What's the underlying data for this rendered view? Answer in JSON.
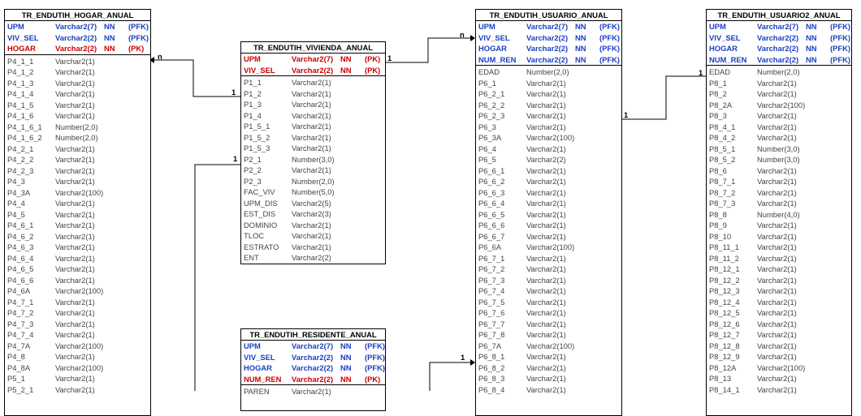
{
  "tables": {
    "hogar": {
      "title": "TR_ENDUTIH_HOGAR_ANUAL",
      "keys": [
        {
          "name": "UPM",
          "type": "Varchar2(7)",
          "nn": "NN",
          "tag": "(PFK)",
          "kind": "fk"
        },
        {
          "name": "VIV_SEL",
          "type": "Varchar2(2)",
          "nn": "NN",
          "tag": "(PFK)",
          "kind": "fk"
        },
        {
          "name": "HOGAR",
          "type": "Varchar2(2)",
          "nn": "NN",
          "tag": "(PK)",
          "kind": "pk"
        }
      ],
      "fields": [
        [
          "P4_1_1",
          "Varchar2(1)"
        ],
        [
          "P4_1_2",
          "Varchar2(1)"
        ],
        [
          "P4_1_3",
          "Varchar2(1)"
        ],
        [
          "P4_1_4",
          "Varchar2(1)"
        ],
        [
          "P4_1_5",
          "Varchar2(1)"
        ],
        [
          "P4_1_6",
          "Varchar2(1)"
        ],
        [
          "P4_1_6_1",
          "Number(2,0)"
        ],
        [
          "P4_1_6_2",
          "Number(2,0)"
        ],
        [
          "P4_2_1",
          "Varchar2(1)"
        ],
        [
          "P4_2_2",
          "Varchar2(1)"
        ],
        [
          "P4_2_3",
          "Varchar2(1)"
        ],
        [
          "P4_3",
          "Varchar2(1)"
        ],
        [
          "P4_3A",
          "Varchar2(100)"
        ],
        [
          "P4_4",
          "Varchar2(1)"
        ],
        [
          "P4_5",
          "Varchar2(1)"
        ],
        [
          "P4_6_1",
          "Varchar2(1)"
        ],
        [
          "P4_6_2",
          "Varchar2(1)"
        ],
        [
          "P4_6_3",
          "Varchar2(1)"
        ],
        [
          "P4_6_4",
          "Varchar2(1)"
        ],
        [
          "P4_6_5",
          "Varchar2(1)"
        ],
        [
          "P4_6_6",
          "Varchar2(1)"
        ],
        [
          "P4_6A",
          "Varchar2(100)"
        ],
        [
          "P4_7_1",
          "Varchar2(1)"
        ],
        [
          "P4_7_2",
          "Varchar2(1)"
        ],
        [
          "P4_7_3",
          "Varchar2(1)"
        ],
        [
          "P4_7_4",
          "Varchar2(1)"
        ],
        [
          "P4_7A",
          "Varchar2(100)"
        ],
        [
          "P4_8",
          "Varchar2(1)"
        ],
        [
          "P4_8A",
          "Varchar2(100)"
        ],
        [
          "P5_1",
          "Varchar2(1)"
        ],
        [
          "P5_2_1",
          "Varchar2(1)"
        ]
      ]
    },
    "vivienda": {
      "title": "TR_ENDUTIH_VIVIENDA_ANUAL",
      "keys": [
        {
          "name": "UPM",
          "type": "Varchar2(7)",
          "nn": "NN",
          "tag": "(PK)",
          "kind": "pk"
        },
        {
          "name": "VIV_SEL",
          "type": "Varchar2(2)",
          "nn": "NN",
          "tag": "(PK)",
          "kind": "pk"
        }
      ],
      "fields": [
        [
          "P1_1",
          "Varchar2(1)"
        ],
        [
          "P1_2",
          "Varchar2(1)"
        ],
        [
          "P1_3",
          "Varchar2(1)"
        ],
        [
          "P1_4",
          "Varchar2(1)"
        ],
        [
          "P1_5_1",
          "Varchar2(1)"
        ],
        [
          "P1_5_2",
          "Varchar2(1)"
        ],
        [
          "P1_5_3",
          "Varchar2(1)"
        ],
        [
          "P2_1",
          "Number(3,0)"
        ],
        [
          "P2_2",
          "Varchar2(1)"
        ],
        [
          "P2_3",
          "Number(2,0)"
        ],
        [
          "FAC_VIV",
          "Number(5,0)"
        ],
        [
          "UPM_DIS",
          "Varchar2(5)"
        ],
        [
          "EST_DIS",
          "Varchar2(3)"
        ],
        [
          "DOMINIO",
          "Varchar2(1)"
        ],
        [
          "TLOC",
          "Varchar2(1)"
        ],
        [
          "ESTRATO",
          "Varchar2(1)"
        ],
        [
          "ENT",
          "Varchar2(2)"
        ]
      ]
    },
    "residente": {
      "title": "TR_ENDUTIH_RESIDENTE_ANUAL",
      "keys": [
        {
          "name": "UPM",
          "type": "Varchar2(7)",
          "nn": "NN",
          "tag": "(PFK)",
          "kind": "fk"
        },
        {
          "name": "VIV_SEL",
          "type": "Varchar2(2)",
          "nn": "NN",
          "tag": "(PFK)",
          "kind": "fk"
        },
        {
          "name": "HOGAR",
          "type": "Varchar2(2)",
          "nn": "NN",
          "tag": "(PFK)",
          "kind": "fk"
        },
        {
          "name": "NUM_REN",
          "type": "Varchar2(2)",
          "nn": "NN",
          "tag": "(PK)",
          "kind": "pk"
        }
      ],
      "fields": [
        [
          "PAREN",
          "Varchar2(1)"
        ]
      ]
    },
    "usuario": {
      "title": "TR_ENDUTIH_USUARIO_ANUAL",
      "keys": [
        {
          "name": "UPM",
          "type": "Varchar2(7)",
          "nn": "NN",
          "tag": "(PFK)",
          "kind": "fk"
        },
        {
          "name": "VIV_SEL",
          "type": "Varchar2(2)",
          "nn": "NN",
          "tag": "(PFK)",
          "kind": "fk"
        },
        {
          "name": "HOGAR",
          "type": "Varchar2(2)",
          "nn": "NN",
          "tag": "(PFK)",
          "kind": "fk"
        },
        {
          "name": "NUM_REN",
          "type": "Varchar2(2)",
          "nn": "NN",
          "tag": "(PFK)",
          "kind": "fk"
        }
      ],
      "fields": [
        [
          "EDAD",
          "Number(2,0)"
        ],
        [
          "P6_1",
          "Varchar2(1)"
        ],
        [
          "P6_2_1",
          "Varchar2(1)"
        ],
        [
          "P6_2_2",
          "Varchar2(1)"
        ],
        [
          "P6_2_3",
          "Varchar2(1)"
        ],
        [
          "P6_3",
          "Varchar2(1)"
        ],
        [
          "P6_3A",
          "Varchar2(100)"
        ],
        [
          "P6_4",
          "Varchar2(1)"
        ],
        [
          "P6_5",
          "Varchar2(2)"
        ],
        [
          "P6_6_1",
          "Varchar2(1)"
        ],
        [
          "P6_6_2",
          "Varchar2(1)"
        ],
        [
          "P6_6_3",
          "Varchar2(1)"
        ],
        [
          "P6_6_4",
          "Varchar2(1)"
        ],
        [
          "P6_6_5",
          "Varchar2(1)"
        ],
        [
          "P6_6_6",
          "Varchar2(1)"
        ],
        [
          "P6_6_7",
          "Varchar2(1)"
        ],
        [
          "P6_6A",
          "Varchar2(100)"
        ],
        [
          "P6_7_1",
          "Varchar2(1)"
        ],
        [
          "P6_7_2",
          "Varchar2(1)"
        ],
        [
          "P6_7_3",
          "Varchar2(1)"
        ],
        [
          "P6_7_4",
          "Varchar2(1)"
        ],
        [
          "P6_7_5",
          "Varchar2(1)"
        ],
        [
          "P6_7_6",
          "Varchar2(1)"
        ],
        [
          "P6_7_7",
          "Varchar2(1)"
        ],
        [
          "P6_7_8",
          "Varchar2(1)"
        ],
        [
          "P6_7A",
          "Varchar2(100)"
        ],
        [
          "P6_8_1",
          "Varchar2(1)"
        ],
        [
          "P6_8_2",
          "Varchar2(1)"
        ],
        [
          "P6_8_3",
          "Varchar2(1)"
        ],
        [
          "P6_8_4",
          "Varchar2(1)"
        ]
      ]
    },
    "usuario2": {
      "title": "TR_ENDUTIH_USUARIO2_ANUAL",
      "keys": [
        {
          "name": "UPM",
          "type": "Varchar2(7)",
          "nn": "NN",
          "tag": "(PFK)",
          "kind": "fk"
        },
        {
          "name": "VIV_SEL",
          "type": "Varchar2(2)",
          "nn": "NN",
          "tag": "(PFK)",
          "kind": "fk"
        },
        {
          "name": "HOGAR",
          "type": "Varchar2(2)",
          "nn": "NN",
          "tag": "(PFK)",
          "kind": "fk"
        },
        {
          "name": "NUM_REN",
          "type": "Varchar2(2)",
          "nn": "NN",
          "tag": "(PFK)",
          "kind": "fk"
        }
      ],
      "fields": [
        [
          "EDAD",
          "Number(2,0)"
        ],
        [
          "P8_1",
          "Varchar2(1)"
        ],
        [
          "P8_2",
          "Varchar2(1)"
        ],
        [
          "P8_2A",
          "Varchar2(100)"
        ],
        [
          "P8_3",
          "Varchar2(1)"
        ],
        [
          "P8_4_1",
          "Varchar2(1)"
        ],
        [
          "P8_4_2",
          "Varchar2(1)"
        ],
        [
          "P8_5_1",
          "Number(3,0)"
        ],
        [
          "P8_5_2",
          "Number(3,0)"
        ],
        [
          "P8_6",
          "Varchar2(1)"
        ],
        [
          "P8_7_1",
          "Varchar2(1)"
        ],
        [
          "P8_7_2",
          "Varchar2(1)"
        ],
        [
          "P8_7_3",
          "Varchar2(1)"
        ],
        [
          "P8_8",
          "Number(4,0)"
        ],
        [
          "P8_9",
          "Varchar2(1)"
        ],
        [
          "P8_10",
          "Varchar2(1)"
        ],
        [
          "P8_11_1",
          "Varchar2(1)"
        ],
        [
          "P8_11_2",
          "Varchar2(1)"
        ],
        [
          "P8_12_1",
          "Varchar2(1)"
        ],
        [
          "P8_12_2",
          "Varchar2(1)"
        ],
        [
          "P8_12_3",
          "Varchar2(1)"
        ],
        [
          "P8_12_4",
          "Varchar2(1)"
        ],
        [
          "P8_12_5",
          "Varchar2(1)"
        ],
        [
          "P8_12_6",
          "Varchar2(1)"
        ],
        [
          "P8_12_7",
          "Varchar2(1)"
        ],
        [
          "P8_12_8",
          "Varchar2(1)"
        ],
        [
          "P8_12_9",
          "Varchar2(1)"
        ],
        [
          "P8_12A",
          "Varchar2(100)"
        ],
        [
          "P8_13",
          "Varchar2(1)"
        ],
        [
          "P8_14_1",
          "Varchar2(1)"
        ]
      ]
    }
  },
  "cardinalities": {
    "hogar_n": "n",
    "hogar_1": "1",
    "usuario_n": "n",
    "usuario_1": "1",
    "usuario2_1a": "1",
    "usuario2_1b": "1",
    "residente_link_1": "1",
    "usuario_lower_1": "1"
  },
  "colors": {
    "pk": "#cc0000",
    "fk": "#1a3fc1",
    "text": "#444444",
    "border": "#000000"
  }
}
